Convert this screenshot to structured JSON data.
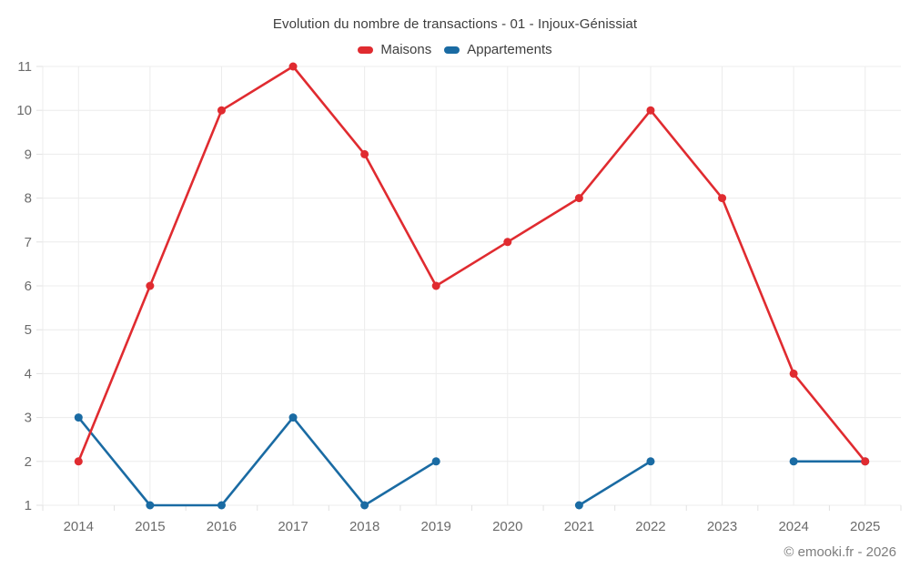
{
  "chart_data": {
    "type": "line",
    "title": "Evolution du nombre de transactions - 01 - Injoux-Génissiat",
    "xlabel": "",
    "ylabel": "",
    "categories": [
      "2014",
      "2015",
      "2016",
      "2017",
      "2018",
      "2019",
      "2020",
      "2021",
      "2022",
      "2023",
      "2024",
      "2025"
    ],
    "series": [
      {
        "name": "Maisons",
        "color": "#e02b30",
        "values": [
          2,
          6,
          10,
          11,
          9,
          6,
          7,
          8,
          10,
          8,
          4,
          2
        ]
      },
      {
        "name": "Appartements",
        "color": "#1a6ba3",
        "values": [
          3,
          1,
          1,
          3,
          1,
          2,
          null,
          1,
          2,
          null,
          2,
          2
        ]
      }
    ],
    "ylim": [
      1,
      11
    ],
    "y_ticks": [
      1,
      2,
      3,
      4,
      5,
      6,
      7,
      8,
      9,
      10,
      11
    ],
    "grid": true,
    "legend_position": "top",
    "marker_radius": 4.5,
    "line_width": 2.6
  },
  "footer": {
    "credit": "© emooki.fr - 2026"
  },
  "theme": {
    "background": "#ffffff",
    "grid_color": "#ececec",
    "tick_color": "#e2e2e2",
    "axis_label_color": "#6b6b6b",
    "title_color": "#3e3e3e",
    "legend_text_color": "#3e3e3e",
    "credit_color": "#7d7d7d"
  }
}
